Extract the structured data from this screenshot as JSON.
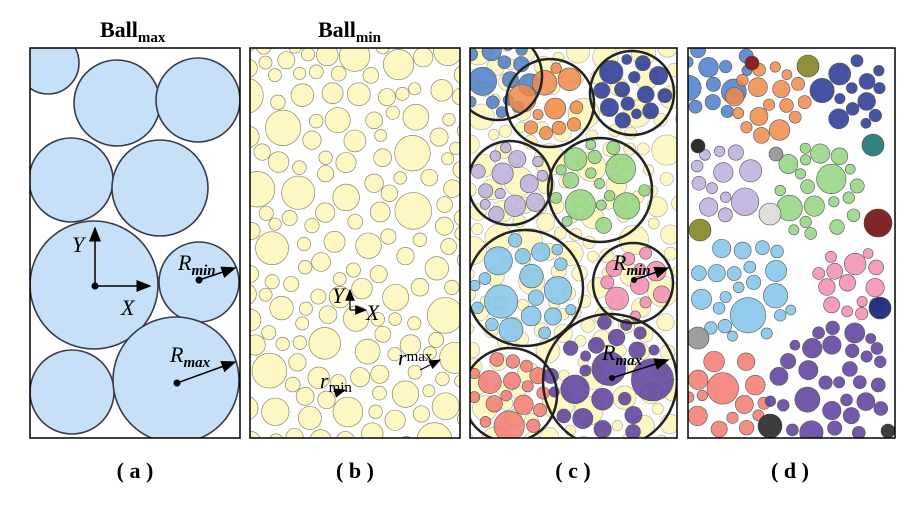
{
  "panel_a": {
    "title": "Ball",
    "title_sub": "max",
    "axis_y": "Y",
    "axis_x": "X",
    "r_min": "R",
    "r_min_sub": "min",
    "r_max": "R",
    "r_max_sub": "max",
    "caption": "( a )"
  },
  "panel_b": {
    "title": "Ball",
    "title_sub": "min",
    "axis_y": "Y",
    "axis_x": "X",
    "r_min": "r",
    "r_min_sub": "min",
    "r_max": "r",
    "r_max_sub": "max",
    "caption": "( b )"
  },
  "panel_c": {
    "r_min": "R",
    "r_min_sub": "min",
    "r_max": "R",
    "r_max_sub": "max",
    "caption": "( c )"
  },
  "panel_d": {
    "caption": "( d )"
  }
}
